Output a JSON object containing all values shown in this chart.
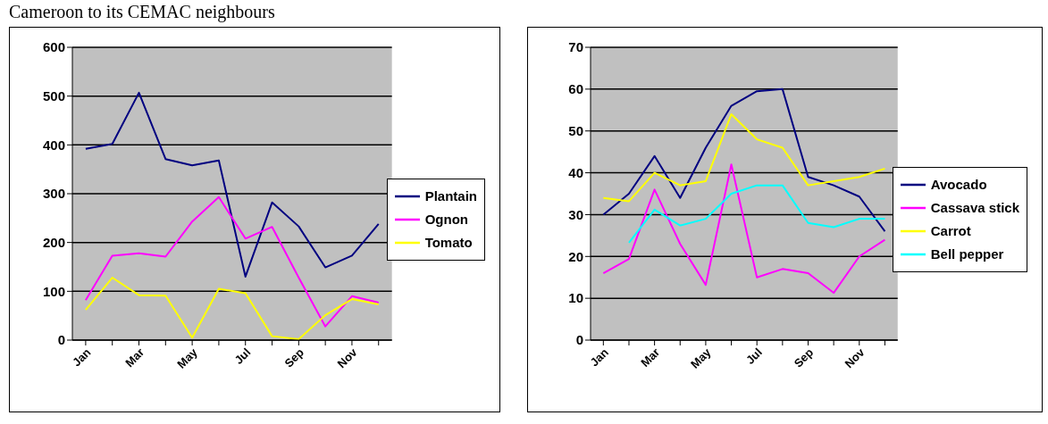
{
  "chart_data": [
    {
      "type": "line",
      "title": "Cameroon to its CEMAC neighbours",
      "categories": [
        "Jan",
        null,
        "Mar",
        null,
        "May",
        null,
        "Jul",
        null,
        "Sep",
        null,
        "Nov",
        null
      ],
      "ylim": [
        0,
        600
      ],
      "yticks": [
        0,
        100,
        200,
        300,
        400,
        500,
        600
      ],
      "grid": "y",
      "legend": "right",
      "marker": "none",
      "series": [
        {
          "name": "Plantain",
          "color": "#000080",
          "values": [
            392,
            402,
            507,
            371,
            358,
            368,
            130,
            282,
            233,
            149,
            173,
            238
          ]
        },
        {
          "name": "Ognon",
          "color": "#ff00ff",
          "values": [
            82,
            173,
            178,
            171,
            243,
            293,
            208,
            232,
            128,
            28,
            90,
            77
          ]
        },
        {
          "name": "Tomato",
          "color": "#ffff00",
          "values": [
            62,
            128,
            92,
            91,
            5,
            105,
            96,
            8,
            2,
            51,
            84,
            73
          ]
        }
      ]
    },
    {
      "type": "line",
      "categories": [
        "Jan",
        null,
        "Mar",
        null,
        "May",
        null,
        "Jul",
        null,
        "Sep",
        null,
        "Nov",
        null
      ],
      "ylim": [
        0,
        70
      ],
      "yticks": [
        0,
        10,
        20,
        30,
        40,
        50,
        60,
        70
      ],
      "grid": "y",
      "legend": "right",
      "marker": "none",
      "series": [
        {
          "name": "Avocado",
          "color": "#000080",
          "values": [
            30,
            35,
            44,
            34,
            46,
            56,
            59.5,
            60,
            39,
            37,
            34.3,
            26
          ]
        },
        {
          "name": "Cassava stick",
          "color": "#ff00ff",
          "values": [
            16,
            19.4,
            36,
            23,
            13.2,
            42,
            15,
            17,
            16,
            11.3,
            20,
            24
          ]
        },
        {
          "name": "Carrot",
          "color": "#ffff00",
          "values": [
            34,
            33.2,
            40,
            37,
            38,
            54,
            48,
            46,
            37,
            38,
            39,
            41
          ]
        },
        {
          "name": "Bell pepper",
          "color": "#00ffff",
          "values": [
            null,
            23.3,
            31.2,
            27.4,
            29,
            35,
            37,
            37,
            28,
            27,
            29,
            29
          ]
        }
      ]
    }
  ]
}
